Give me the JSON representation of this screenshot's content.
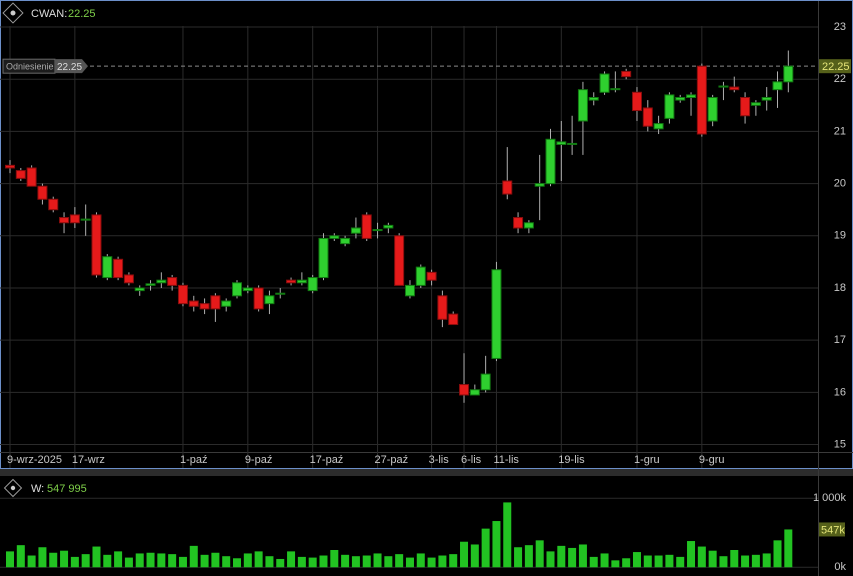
{
  "chart_data": [
    {
      "type": "candlestick",
      "title": "CWAN:",
      "categories": [
        "9-wrz-2025",
        null,
        null,
        null,
        null,
        null,
        "17-wrz",
        null,
        null,
        null,
        null,
        null,
        null,
        null,
        null,
        null,
        "1-paź",
        null,
        null,
        null,
        null,
        null,
        "9-paź",
        null,
        null,
        null,
        null,
        null,
        "17-paź",
        null,
        null,
        null,
        null,
        null,
        "27-paź",
        null,
        null,
        null,
        null,
        "3-lis",
        null,
        null,
        "6-lis",
        null,
        null,
        "11-lis",
        null,
        null,
        null,
        null,
        null,
        "19-lis",
        null,
        null,
        null,
        null,
        null,
        null,
        "1-gru",
        null,
        null,
        null,
        null,
        null,
        "9-gru",
        null,
        null,
        null,
        null,
        null,
        null,
        null,
        null
      ],
      "open": [
        20.35,
        20.25,
        20.3,
        19.95,
        19.7,
        19.35,
        19.4,
        19.3,
        19.4,
        18.2,
        18.55,
        18.25,
        17.95,
        18.05,
        18.1,
        18.2,
        18.05,
        17.75,
        17.7,
        17.85,
        17.65,
        17.85,
        17.95,
        18.0,
        17.7,
        17.88,
        18.15,
        18.1,
        17.95,
        18.2,
        18.95,
        18.85,
        19.05,
        19.4,
        19.1,
        19.15,
        19.0,
        17.85,
        18.05,
        18.3,
        17.85,
        17.5,
        16.15,
        15.95,
        16.05,
        16.65,
        20.05,
        19.35,
        19.15,
        19.95,
        20.0,
        20.75,
        20.75,
        21.2,
        21.6,
        21.75,
        21.8,
        22.15,
        21.75,
        21.45,
        21.05,
        21.25,
        21.6,
        21.65,
        22.25,
        21.2,
        21.85,
        21.85,
        21.65,
        21.5,
        21.6,
        21.8,
        21.95
      ],
      "high": [
        20.45,
        20.3,
        20.35,
        20.0,
        19.75,
        19.45,
        19.55,
        19.6,
        19.45,
        18.65,
        18.6,
        18.3,
        18.05,
        18.15,
        18.3,
        18.25,
        18.1,
        17.85,
        17.8,
        17.9,
        17.8,
        18.15,
        18.05,
        18.05,
        17.95,
        18.0,
        18.2,
        18.3,
        18.25,
        19.05,
        19.05,
        19.0,
        19.35,
        19.45,
        19.25,
        19.25,
        19.05,
        18.15,
        18.45,
        18.35,
        17.95,
        17.55,
        16.75,
        16.15,
        16.7,
        18.5,
        20.7,
        19.45,
        19.3,
        20.55,
        21.05,
        21.2,
        21.3,
        21.95,
        21.75,
        22.15,
        22.15,
        22.2,
        21.85,
        21.6,
        21.3,
        21.75,
        21.7,
        21.75,
        22.3,
        21.7,
        21.95,
        22.05,
        21.75,
        21.6,
        21.85,
        22.15,
        22.55
      ],
      "low": [
        20.2,
        20.05,
        19.95,
        19.6,
        19.45,
        19.05,
        19.15,
        19.0,
        18.2,
        18.15,
        18.15,
        18.05,
        17.85,
        17.95,
        18.0,
        17.95,
        17.65,
        17.55,
        17.5,
        17.35,
        17.55,
        17.8,
        17.9,
        17.55,
        17.5,
        17.8,
        18.05,
        18.05,
        17.9,
        18.15,
        18.9,
        18.8,
        18.95,
        18.9,
        18.95,
        19.05,
        18.05,
        17.8,
        18.0,
        18.05,
        17.25,
        17.3,
        15.8,
        15.95,
        16.0,
        16.6,
        19.7,
        19.05,
        19.05,
        19.3,
        19.95,
        20.05,
        20.55,
        20.55,
        21.5,
        21.7,
        21.75,
        22.0,
        21.2,
        21.0,
        20.95,
        21.15,
        21.55,
        21.3,
        20.9,
        21.1,
        21.6,
        21.75,
        21.15,
        21.3,
        21.4,
        21.45,
        21.75
      ],
      "close": [
        20.3,
        20.1,
        19.95,
        19.7,
        19.5,
        19.25,
        19.25,
        19.32,
        18.25,
        18.6,
        18.2,
        18.1,
        18.0,
        18.08,
        18.15,
        18.05,
        17.7,
        17.65,
        17.6,
        17.6,
        17.75,
        18.1,
        18.0,
        17.6,
        17.85,
        17.9,
        18.1,
        18.15,
        18.2,
        18.95,
        19.0,
        18.95,
        19.15,
        18.95,
        19.12,
        19.2,
        18.05,
        18.05,
        18.4,
        18.15,
        17.4,
        17.3,
        15.95,
        16.05,
        16.35,
        18.35,
        19.8,
        19.15,
        19.25,
        20.0,
        20.85,
        20.8,
        20.77,
        21.8,
        21.65,
        22.1,
        21.82,
        22.05,
        21.4,
        21.1,
        21.15,
        21.7,
        21.65,
        21.7,
        20.95,
        21.65,
        21.87,
        21.8,
        21.3,
        21.55,
        21.65,
        21.95,
        22.25
      ],
      "up_color": "#2fd02f",
      "down_color": "#e61a1a",
      "ylim": [
        14.8,
        23.02
      ],
      "yticks": [
        15,
        16,
        17,
        18,
        19,
        20,
        21,
        22,
        23
      ],
      "grid": true,
      "reference": {
        "label": "Odniesienie",
        "value": 22.25
      }
    },
    {
      "type": "bar",
      "title": "W:",
      "values": [
        230000,
        320000,
        170000,
        290000,
        210000,
        240000,
        150000,
        190000,
        300000,
        180000,
        230000,
        140000,
        200000,
        210000,
        200000,
        190000,
        150000,
        310000,
        180000,
        210000,
        160000,
        130000,
        200000,
        230000,
        160000,
        120000,
        230000,
        150000,
        140000,
        170000,
        250000,
        180000,
        160000,
        170000,
        200000,
        160000,
        190000,
        140000,
        200000,
        140000,
        170000,
        190000,
        370000,
        330000,
        560000,
        670000,
        940000,
        290000,
        320000,
        390000,
        230000,
        310000,
        280000,
        330000,
        150000,
        200000,
        100000,
        130000,
        220000,
        170000,
        170000,
        180000,
        150000,
        380000,
        300000,
        240000,
        160000,
        250000,
        170000,
        180000,
        200000,
        390000,
        547995
      ],
      "color": "#22c322",
      "current": {
        "value": 547995,
        "header_label": "547 995",
        "axis_label": "547k"
      },
      "ylim": [
        -40000,
        1120000
      ],
      "yticks": [
        {
          "value": 0,
          "label": "0k"
        },
        {
          "value": 1000000,
          "label": "1 000k"
        }
      ]
    }
  ]
}
